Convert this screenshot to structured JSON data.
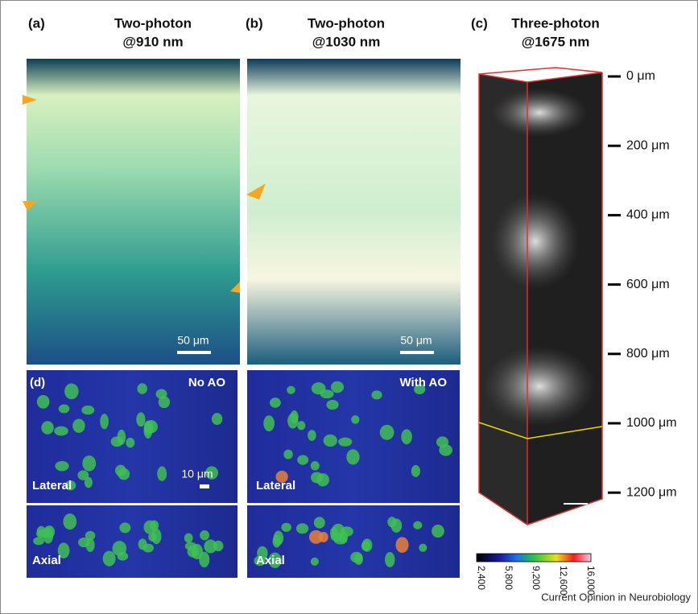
{
  "panels": [
    {
      "label": "(a)",
      "title": [
        "Two-photon",
        "@910 nm"
      ],
      "scale_bar": "50 μm"
    },
    {
      "label": "(b)",
      "title": [
        "Two-photon",
        "@1030 nm"
      ],
      "scale_bar": "50 μm"
    },
    {
      "label": "(c)",
      "title": [
        "Three-photon",
        "@1675 nm"
      ],
      "depth_ticks": [
        "0 μm",
        "200 μm",
        "400 μm",
        "600 μm",
        "800 μm",
        "1000 μm",
        "1200 μm"
      ],
      "colorbar_ticks": [
        "2,400",
        "5,800",
        "9,200",
        "12,600",
        "16,000"
      ]
    },
    {
      "label": "(d)",
      "conditions": [
        "No AO",
        "With AO"
      ],
      "views": [
        "Lateral",
        "Axial"
      ],
      "scale_bar": "10 μm"
    }
  ],
  "footer": "Current Opinion in Neurobiology"
}
